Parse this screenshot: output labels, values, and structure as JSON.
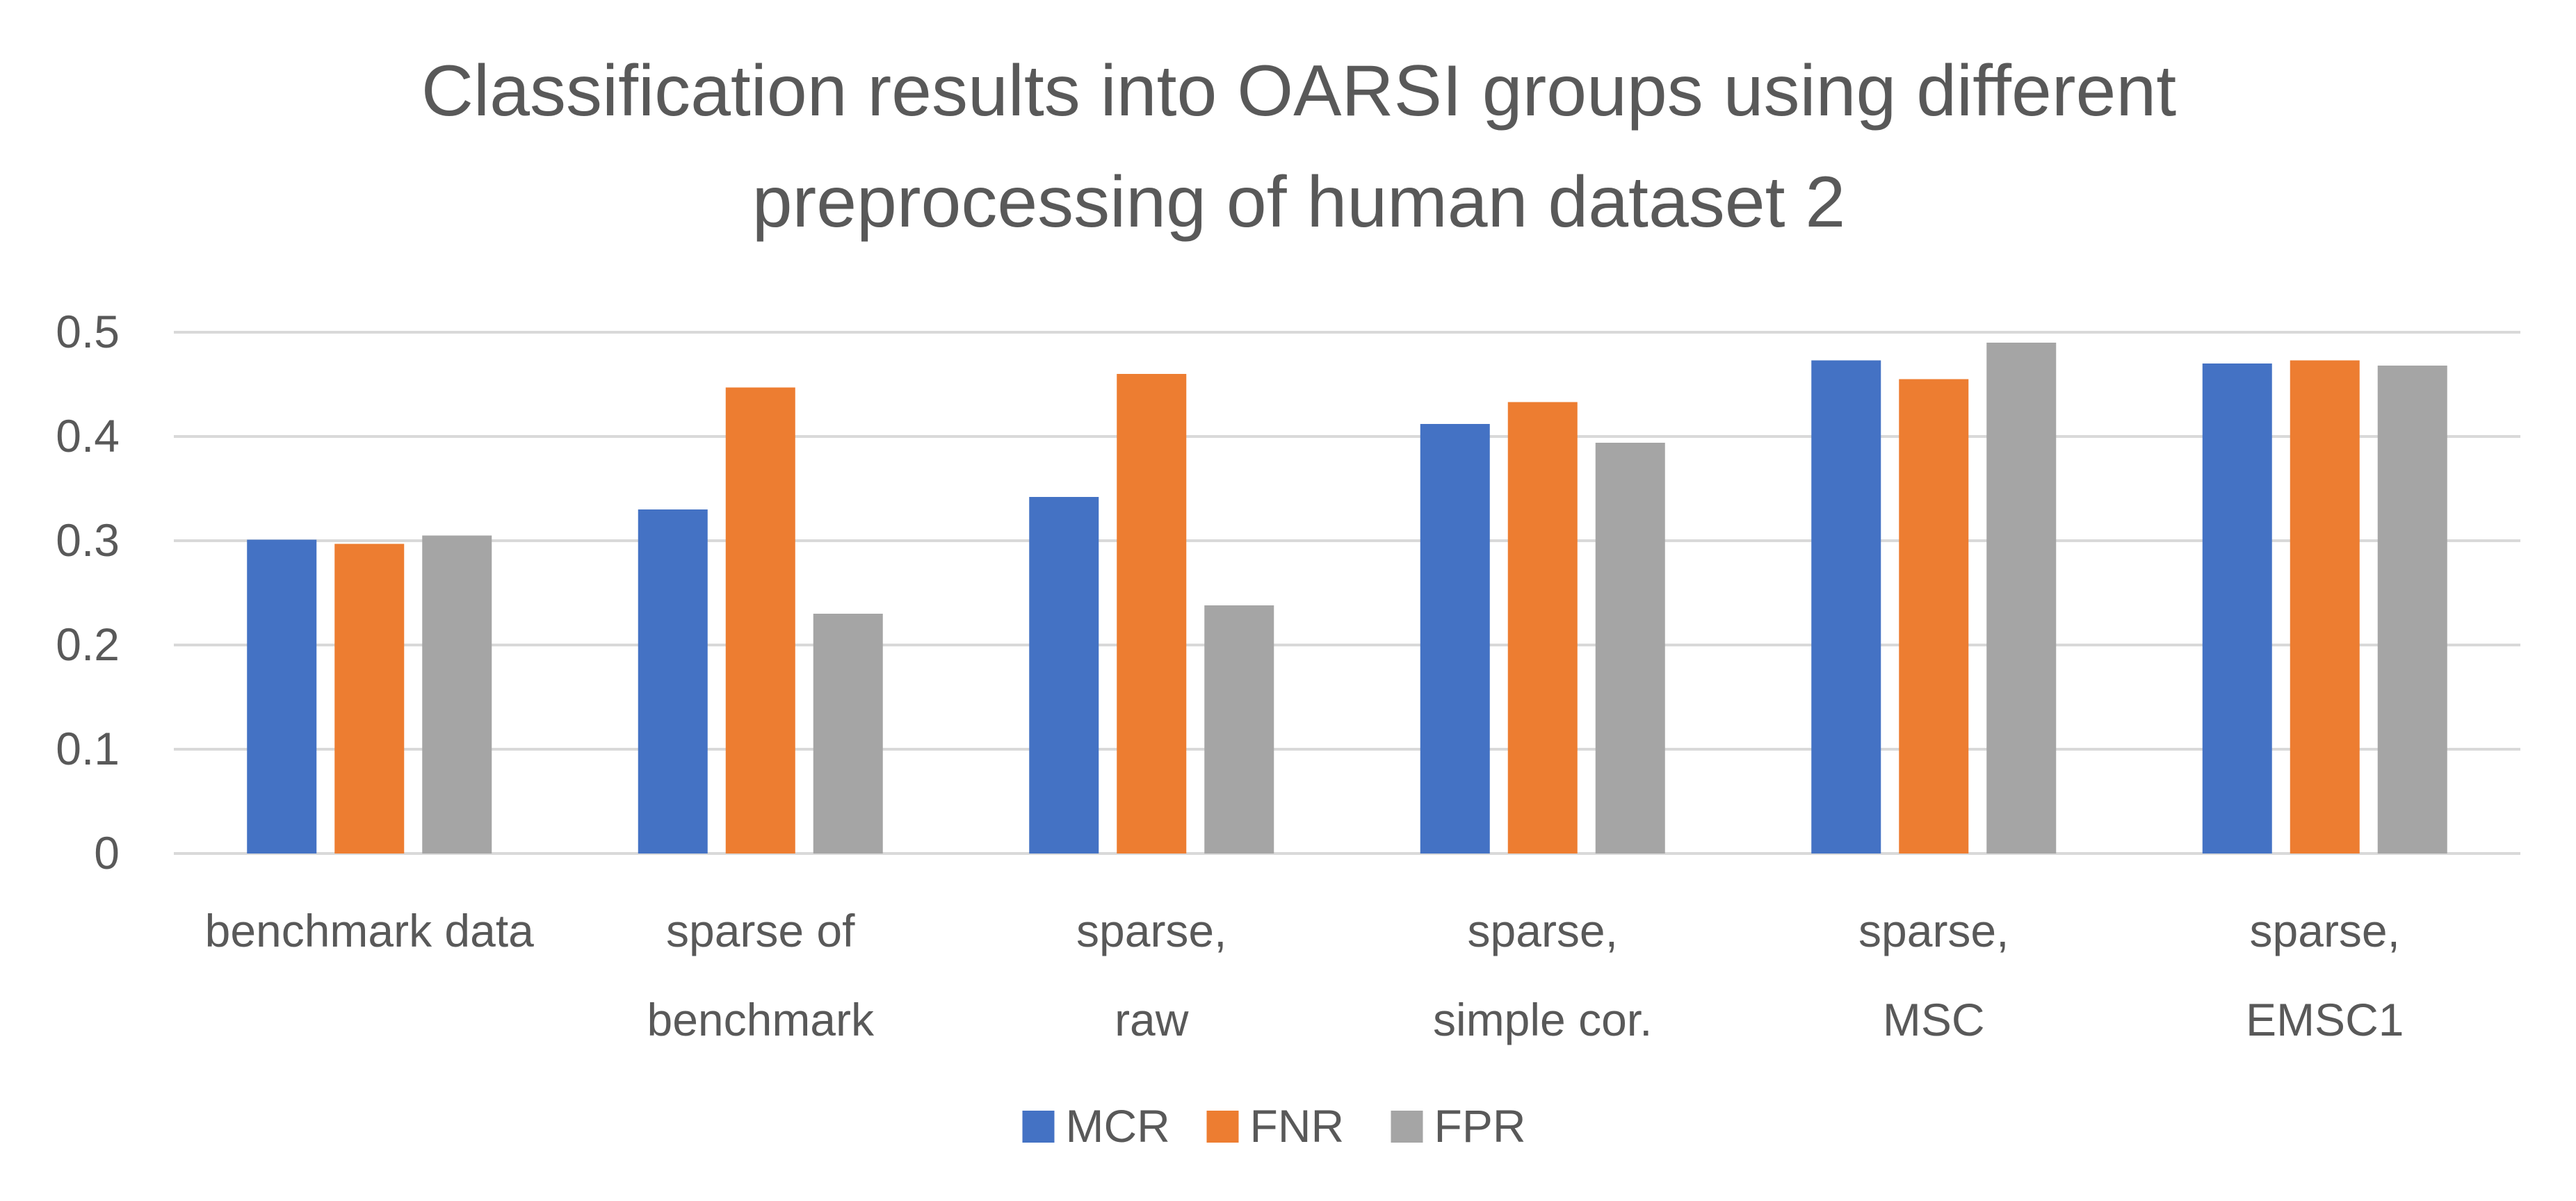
{
  "chart_data": {
    "type": "bar",
    "title": "Classification results into OARSI groups using different preprocessing of human dataset 2",
    "title_lines": [
      "Classification results into OARSI groups using different",
      "preprocessing of human dataset 2"
    ],
    "xlabel": "",
    "ylabel": "",
    "ylim": [
      0,
      0.5
    ],
    "yticks": [
      0,
      0.1,
      0.2,
      0.3,
      0.4,
      0.5
    ],
    "ytick_labels": [
      "0",
      "0.1",
      "0.2",
      "0.3",
      "0.4",
      "0.5"
    ],
    "grid": true,
    "legend_position": "bottom",
    "categories": [
      [
        "benchmark data"
      ],
      [
        "sparse of",
        "benchmark"
      ],
      [
        "sparse,",
        "raw"
      ],
      [
        "sparse,",
        "simple cor."
      ],
      [
        "sparse,",
        "MSC"
      ],
      [
        "sparse,",
        "EMSC1"
      ]
    ],
    "series": [
      {
        "name": "MCR",
        "color": "#4472c4",
        "values": [
          0.301,
          0.33,
          0.342,
          0.412,
          0.473,
          0.47
        ]
      },
      {
        "name": "FNR",
        "color": "#ed7d31",
        "values": [
          0.297,
          0.447,
          0.46,
          0.433,
          0.455,
          0.473
        ]
      },
      {
        "name": "FPR",
        "color": "#a5a5a5",
        "values": [
          0.305,
          0.23,
          0.238,
          0.394,
          0.49,
          0.468
        ]
      }
    ]
  }
}
